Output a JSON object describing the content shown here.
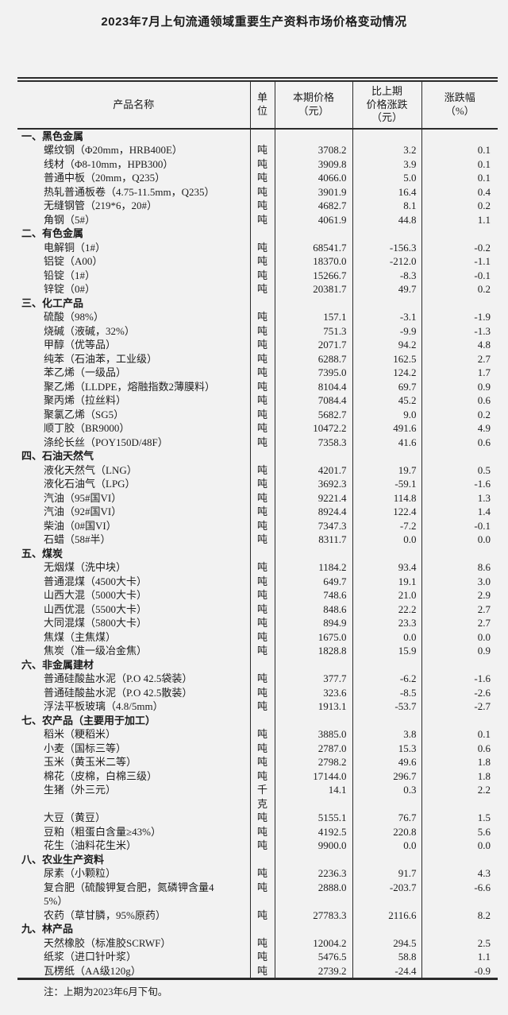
{
  "colors": {
    "background": "#f2f2f2",
    "ink": "#1c1c1c",
    "rule": "#2b2b2b"
  },
  "title": "2023年7月上旬流通领域重要生产资料市场价格变动情况",
  "table": {
    "headers": {
      "product": "产品名称",
      "unit": [
        "单",
        "位"
      ],
      "price": [
        "本期价格",
        "（元）"
      ],
      "change": [
        "比上期",
        "价格涨跌",
        "（元）"
      ],
      "pct": [
        "涨跌幅",
        "（%）"
      ]
    },
    "sections": [
      {
        "label": "一、黑色金属",
        "items": [
          {
            "name": "螺纹钢（Φ20mm，HRB400E）",
            "unit": "吨",
            "price": "3708.2",
            "change": "3.2",
            "pct": "0.1"
          },
          {
            "name": "线材（Φ8-10mm，HPB300）",
            "unit": "吨",
            "price": "3909.8",
            "change": "3.9",
            "pct": "0.1"
          },
          {
            "name": "普通中板（20mm，Q235）",
            "unit": "吨",
            "price": "4066.0",
            "change": "5.0",
            "pct": "0.1"
          },
          {
            "name": "热轧普通板卷（4.75-11.5mm，Q235）",
            "unit": "吨",
            "price": "3901.9",
            "change": "16.4",
            "pct": "0.4"
          },
          {
            "name": "无缝钢管（219*6，20#）",
            "unit": "吨",
            "price": "4682.7",
            "change": "8.1",
            "pct": "0.2"
          },
          {
            "name": "角钢（5#）",
            "unit": "吨",
            "price": "4061.9",
            "change": "44.8",
            "pct": "1.1"
          }
        ]
      },
      {
        "label": "二、有色金属",
        "items": [
          {
            "name": "电解铜（1#）",
            "unit": "吨",
            "price": "68541.7",
            "change": "-156.3",
            "pct": "-0.2"
          },
          {
            "name": "铝锭（A00）",
            "unit": "吨",
            "price": "18370.0",
            "change": "-212.0",
            "pct": "-1.1"
          },
          {
            "name": "铅锭（1#）",
            "unit": "吨",
            "price": "15266.7",
            "change": "-8.3",
            "pct": "-0.1"
          },
          {
            "name": "锌锭（0#）",
            "unit": "吨",
            "price": "20381.7",
            "change": "49.7",
            "pct": "0.2"
          }
        ]
      },
      {
        "label": "三、化工产品",
        "items": [
          {
            "name": "硫酸（98%）",
            "unit": "吨",
            "price": "157.1",
            "change": "-3.1",
            "pct": "-1.9"
          },
          {
            "name": "烧碱（液碱，32%）",
            "unit": "吨",
            "price": "751.3",
            "change": "-9.9",
            "pct": "-1.3"
          },
          {
            "name": "甲醇（优等品）",
            "unit": "吨",
            "price": "2071.7",
            "change": "94.2",
            "pct": "4.8"
          },
          {
            "name": "纯苯（石油苯，工业级）",
            "unit": "吨",
            "price": "6288.7",
            "change": "162.5",
            "pct": "2.7"
          },
          {
            "name": "苯乙烯（一级品）",
            "unit": "吨",
            "price": "7395.0",
            "change": "124.2",
            "pct": "1.7"
          },
          {
            "name": "聚乙烯（LLDPE，熔融指数2薄膜料）",
            "unit": "吨",
            "price": "8104.4",
            "change": "69.7",
            "pct": "0.9"
          },
          {
            "name": "聚丙烯（拉丝料）",
            "unit": "吨",
            "price": "7084.4",
            "change": "45.2",
            "pct": "0.6"
          },
          {
            "name": "聚氯乙烯（SG5）",
            "unit": "吨",
            "price": "5682.7",
            "change": "9.0",
            "pct": "0.2"
          },
          {
            "name": "顺丁胶（BR9000）",
            "unit": "吨",
            "price": "10472.2",
            "change": "491.6",
            "pct": "4.9"
          },
          {
            "name": "涤纶长丝（POY150D/48F）",
            "unit": "吨",
            "price": "7358.3",
            "change": "41.6",
            "pct": "0.6"
          }
        ]
      },
      {
        "label": "四、石油天然气",
        "items": [
          {
            "name": "液化天然气（LNG）",
            "unit": "吨",
            "price": "4201.7",
            "change": "19.7",
            "pct": "0.5"
          },
          {
            "name": "液化石油气（LPG）",
            "unit": "吨",
            "price": "3692.3",
            "change": "-59.1",
            "pct": "-1.6"
          },
          {
            "name": "汽油（95#国VI）",
            "unit": "吨",
            "price": "9221.4",
            "change": "114.8",
            "pct": "1.3"
          },
          {
            "name": "汽油（92#国VI）",
            "unit": "吨",
            "price": "8924.4",
            "change": "122.4",
            "pct": "1.4"
          },
          {
            "name": "柴油（0#国VI）",
            "unit": "吨",
            "price": "7347.3",
            "change": "-7.2",
            "pct": "-0.1"
          },
          {
            "name": "石蜡（58#半）",
            "unit": "吨",
            "price": "8311.7",
            "change": "0.0",
            "pct": "0.0"
          }
        ]
      },
      {
        "label": "五、煤炭",
        "items": [
          {
            "name": "无烟煤（洗中块）",
            "unit": "吨",
            "price": "1184.2",
            "change": "93.4",
            "pct": "8.6"
          },
          {
            "name": "普通混煤（4500大卡）",
            "unit": "吨",
            "price": "649.7",
            "change": "19.1",
            "pct": "3.0"
          },
          {
            "name": "山西大混（5000大卡）",
            "unit": "吨",
            "price": "748.6",
            "change": "21.0",
            "pct": "2.9"
          },
          {
            "name": "山西优混（5500大卡）",
            "unit": "吨",
            "price": "848.6",
            "change": "22.2",
            "pct": "2.7"
          },
          {
            "name": "大同混煤（5800大卡）",
            "unit": "吨",
            "price": "894.9",
            "change": "23.3",
            "pct": "2.7"
          },
          {
            "name": "焦煤（主焦煤）",
            "unit": "吨",
            "price": "1675.0",
            "change": "0.0",
            "pct": "0.0"
          },
          {
            "name": "焦炭（准一级冶金焦）",
            "unit": "吨",
            "price": "1828.8",
            "change": "15.9",
            "pct": "0.9"
          }
        ]
      },
      {
        "label": "六、非金属建材",
        "items": [
          {
            "name": "普通硅酸盐水泥（P.O 42.5袋装）",
            "unit": "吨",
            "price": "377.7",
            "change": "-6.2",
            "pct": "-1.6"
          },
          {
            "name": "普通硅酸盐水泥（P.O 42.5散装）",
            "unit": "吨",
            "price": "323.6",
            "change": "-8.5",
            "pct": "-2.6"
          },
          {
            "name": "浮法平板玻璃（4.8/5mm）",
            "unit": "吨",
            "price": "1913.1",
            "change": "-53.7",
            "pct": "-2.7"
          }
        ]
      },
      {
        "label": "七、农产品（主要用于加工）",
        "items": [
          {
            "name": "稻米（粳稻米）",
            "unit": "吨",
            "price": "3885.0",
            "change": "3.8",
            "pct": "0.1"
          },
          {
            "name": "小麦（国标三等）",
            "unit": "吨",
            "price": "2787.0",
            "change": "15.3",
            "pct": "0.6"
          },
          {
            "name": "玉米（黄玉米二等）",
            "unit": "吨",
            "price": "2798.2",
            "change": "49.6",
            "pct": "1.8"
          },
          {
            "name": "棉花（皮棉，白棉三级）",
            "unit": "吨",
            "price": "17144.0",
            "change": "296.7",
            "pct": "1.8"
          },
          {
            "name": "生猪（外三元）",
            "unit": [
              "千",
              "克"
            ],
            "price": "14.1",
            "change": "0.3",
            "pct": "2.2"
          },
          {
            "name": "大豆（黄豆）",
            "unit": "吨",
            "price": "5155.1",
            "change": "76.7",
            "pct": "1.5"
          },
          {
            "name": "豆粕（粗蛋白含量≥43%）",
            "unit": "吨",
            "price": "4192.5",
            "change": "220.8",
            "pct": "5.6"
          },
          {
            "name": "花生（油料花生米）",
            "unit": "吨",
            "price": "9900.0",
            "change": "0.0",
            "pct": "0.0"
          }
        ]
      },
      {
        "label": "八、农业生产资料",
        "items": [
          {
            "name": "尿素（小颗粒）",
            "unit": "吨",
            "price": "2236.3",
            "change": "91.7",
            "pct": "4.3"
          },
          {
            "name": [
              "复合肥（硫酸钾复合肥，氮磷钾含量4",
              "5%）"
            ],
            "unit": "吨",
            "price": "2888.0",
            "change": "-203.7",
            "pct": "-6.6"
          },
          {
            "name": "农药（草甘膦，95%原药）",
            "unit": "吨",
            "price": "27783.3",
            "change": "2116.6",
            "pct": "8.2"
          }
        ]
      },
      {
        "label": "九、林产品",
        "items": [
          {
            "name": "天然橡胶（标准胶SCRWF）",
            "unit": "吨",
            "price": "12004.2",
            "change": "294.5",
            "pct": "2.5"
          },
          {
            "name": "纸浆（进口针叶浆）",
            "unit": "吨",
            "price": "5476.5",
            "change": "58.8",
            "pct": "1.1"
          },
          {
            "name": "瓦楞纸（AA级120g）",
            "unit": "吨",
            "price": "2739.2",
            "change": "-24.4",
            "pct": "-0.9"
          }
        ]
      }
    ]
  },
  "note": "注：上期为2023年6月下旬。"
}
